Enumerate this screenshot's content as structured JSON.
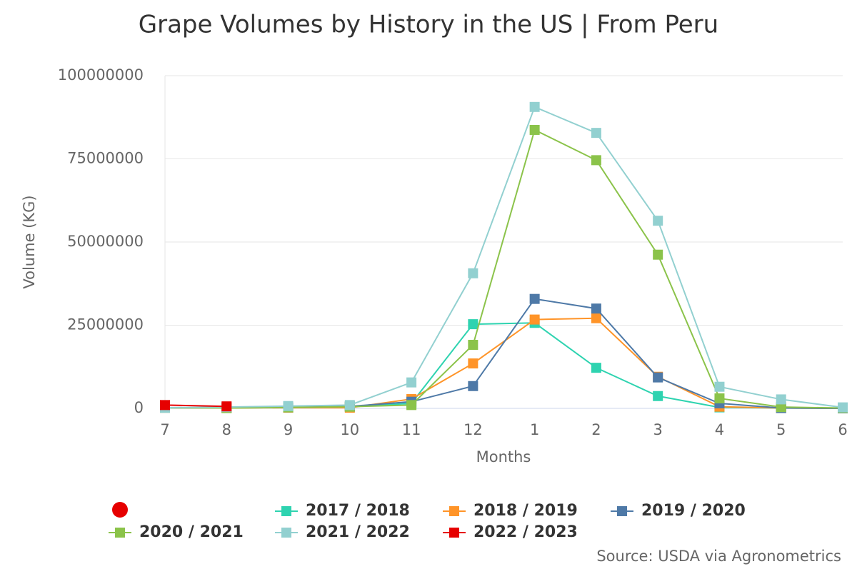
{
  "chart_data": {
    "type": "line",
    "title": "Grape Volumes by History in the US | From Peru",
    "x_label": "Months",
    "y_label": "Volume (KG)",
    "source": "Source: USDA via Agronometrics",
    "categories": [
      "7",
      "8",
      "9",
      "10",
      "11",
      "12",
      "1",
      "2",
      "3",
      "4",
      "5",
      "6"
    ],
    "ylim": [
      0,
      100000000
    ],
    "yticks": [
      0,
      25000000,
      50000000,
      75000000,
      100000000
    ],
    "grid": true,
    "legend": "bottom",
    "series": [
      {
        "name": "2017 / 2018",
        "color": "#2ed3b0",
        "values": [
          200000,
          100000,
          300000,
          500000,
          1500000,
          25300000,
          25700000,
          12200000,
          3700000,
          300000,
          100000,
          0
        ]
      },
      {
        "name": "2018 / 2019",
        "color": "#ff9428",
        "values": [
          200000,
          100000,
          200000,
          200000,
          2800000,
          13500000,
          26700000,
          27100000,
          9500000,
          500000,
          100000,
          0
        ]
      },
      {
        "name": "2019 / 2020",
        "color": "#4e79a7",
        "values": [
          200000,
          200000,
          300000,
          600000,
          2000000,
          6700000,
          32900000,
          30000000,
          9300000,
          1500000,
          100000,
          0
        ]
      },
      {
        "name": "2020 / 2021",
        "color": "#8bc34a",
        "values": [
          200000,
          100000,
          300000,
          500000,
          1000000,
          19100000,
          83700000,
          74600000,
          46200000,
          3000000,
          400000,
          100000
        ]
      },
      {
        "name": "2021 / 2022",
        "color": "#92d0d0",
        "values": [
          200000,
          400000,
          700000,
          1000000,
          7800000,
          40600000,
          90600000,
          82800000,
          56400000,
          6500000,
          2700000,
          300000
        ]
      },
      {
        "name": "2022 / 2023",
        "color": "#e60000",
        "values": [
          1000000,
          600000,
          null,
          null,
          null,
          null,
          null,
          null,
          null,
          null,
          null,
          null
        ]
      }
    ]
  }
}
